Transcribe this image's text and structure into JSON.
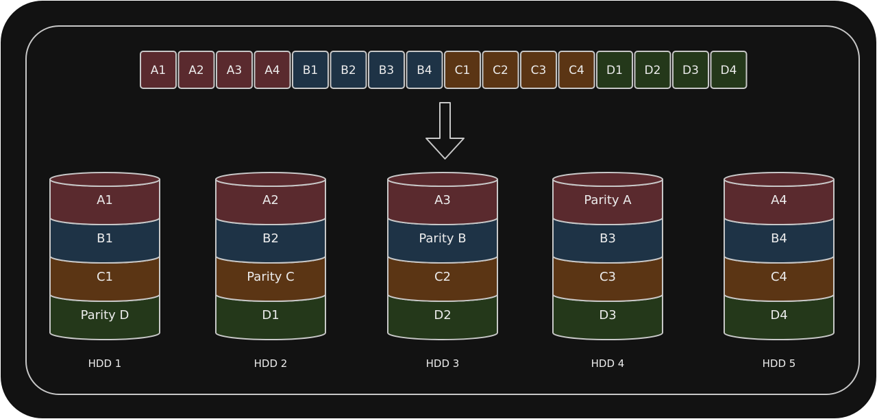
{
  "colors": {
    "panel_fill": "#121212",
    "outline": "#c8c8c8",
    "text": "#ececec",
    "group_fills": {
      "A": "#5a2a2e",
      "B": "#1e3346",
      "C": "#5b3514",
      "D": "#24381a"
    }
  },
  "stripe_blocks": [
    {
      "label": "A1",
      "group": "A"
    },
    {
      "label": "A2",
      "group": "A"
    },
    {
      "label": "A3",
      "group": "A"
    },
    {
      "label": "A4",
      "group": "A"
    },
    {
      "label": "B1",
      "group": "B"
    },
    {
      "label": "B2",
      "group": "B"
    },
    {
      "label": "B3",
      "group": "B"
    },
    {
      "label": "B4",
      "group": "B"
    },
    {
      "label": "C1",
      "group": "C"
    },
    {
      "label": "C2",
      "group": "C"
    },
    {
      "label": "C3",
      "group": "C"
    },
    {
      "label": "C4",
      "group": "C"
    },
    {
      "label": "D1",
      "group": "D"
    },
    {
      "label": "D2",
      "group": "D"
    },
    {
      "label": "D3",
      "group": "D"
    },
    {
      "label": "D4",
      "group": "D"
    }
  ],
  "disks": [
    {
      "name": "HDD 1",
      "layers": [
        {
          "label": "A1",
          "group": "A"
        },
        {
          "label": "B1",
          "group": "B"
        },
        {
          "label": "C1",
          "group": "C"
        },
        {
          "label": "Parity D",
          "group": "D"
        }
      ]
    },
    {
      "name": "HDD 2",
      "layers": [
        {
          "label": "A2",
          "group": "A"
        },
        {
          "label": "B2",
          "group": "B"
        },
        {
          "label": "Parity C",
          "group": "C"
        },
        {
          "label": "D1",
          "group": "D"
        }
      ]
    },
    {
      "name": "HDD 3",
      "layers": [
        {
          "label": "A3",
          "group": "A"
        },
        {
          "label": "Parity B",
          "group": "B"
        },
        {
          "label": "C2",
          "group": "C"
        },
        {
          "label": "D2",
          "group": "D"
        }
      ]
    },
    {
      "name": "HDD 4",
      "layers": [
        {
          "label": "Parity A",
          "group": "A"
        },
        {
          "label": "B3",
          "group": "B"
        },
        {
          "label": "C3",
          "group": "C"
        },
        {
          "label": "D3",
          "group": "D"
        }
      ]
    },
    {
      "name": "HDD 5",
      "layers": [
        {
          "label": "A4",
          "group": "A"
        },
        {
          "label": "B4",
          "group": "B"
        },
        {
          "label": "C4",
          "group": "C"
        },
        {
          "label": "D4",
          "group": "D"
        }
      ]
    }
  ]
}
